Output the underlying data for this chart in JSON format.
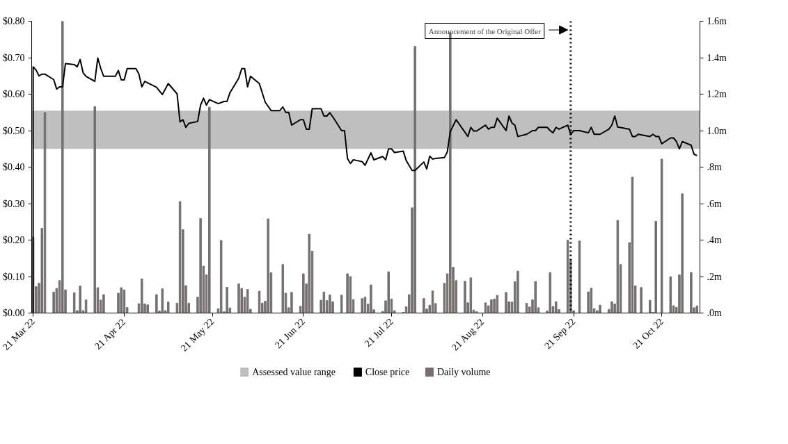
{
  "chart_data": {
    "type": "line",
    "xlim": [
      "2022-03-20T12:00",
      "2022-11-03"
    ],
    "xticks": [
      {
        "value": "2022-03-21",
        "label": "21 Mar 22"
      },
      {
        "value": "2022-04-21",
        "label": "21 Apr 22"
      },
      {
        "value": "2022-05-21",
        "label": "21 May 22"
      },
      {
        "value": "2022-06-21",
        "label": "21 Jun 22"
      },
      {
        "value": "2022-07-21",
        "label": "21 Jul 22"
      },
      {
        "value": "2022-08-21",
        "label": "21 Aug 22"
      },
      {
        "value": "2022-09-21",
        "label": "21 Sep 22"
      },
      {
        "value": "2022-10-21",
        "label": "21 Oct 22"
      }
    ],
    "ylim": [
      0,
      0.8
    ],
    "yticks": [
      {
        "value": 0,
        "label": "$0.00"
      },
      {
        "value": 0.1,
        "label": "$0.10"
      },
      {
        "value": 0.2,
        "label": "$0.20"
      },
      {
        "value": 0.3,
        "label": "$0.30"
      },
      {
        "value": 0.4,
        "label": "$0.40"
      },
      {
        "value": 0.5,
        "label": "$0.50"
      },
      {
        "value": 0.6,
        "label": "$0.60"
      },
      {
        "value": 0.7,
        "label": "$0.70"
      },
      {
        "value": 0.8,
        "label": "$0.80"
      }
    ],
    "y2lim": [
      0,
      1.6
    ],
    "y2ticks": [
      {
        "value": 0,
        "label": ".0m"
      },
      {
        "value": 0.2,
        "label": ".2m"
      },
      {
        "value": 0.4,
        "label": ".4m"
      },
      {
        "value": 0.6,
        "label": ".6m"
      },
      {
        "value": 0.8,
        "label": ".8m"
      },
      {
        "value": 1.0,
        "label": "1.0m"
      },
      {
        "value": 1.2,
        "label": "1.2m"
      },
      {
        "value": 1.4,
        "label": "1.4m"
      },
      {
        "value": 1.6,
        "label": "1.6m"
      }
    ],
    "grid": false,
    "legend": "bottom",
    "bands": [
      {
        "axis": "y",
        "from": 0.45,
        "to": 0.555,
        "label": "Assessed value range",
        "color": "#bfbfbf"
      }
    ],
    "ref_lines": [
      {
        "axis": "x",
        "value": "2022-09-20",
        "label": "Announcement of the Original Offer",
        "color": "#000000",
        "line_style": "dotted"
      }
    ],
    "series": [
      {
        "name": "Close price",
        "color": "#000000",
        "x": [
          "2022-03-21",
          "2022-03-21",
          "2022-03-22",
          "2022-03-23",
          "2022-03-24",
          "2022-03-25",
          "2022-03-28",
          "2022-03-29",
          "2022-03-30",
          "2022-03-31",
          "2022-04-01",
          "2022-04-04",
          "2022-04-05",
          "2022-04-06",
          "2022-04-07",
          "2022-04-08",
          "2022-04-11",
          "2022-04-12",
          "2022-04-13",
          "2022-04-14",
          "2022-04-18",
          "2022-04-19",
          "2022-04-20",
          "2022-04-21",
          "2022-04-22",
          "2022-04-25",
          "2022-04-26",
          "2022-04-27",
          "2022-04-28",
          "2022-05-02",
          "2022-05-04",
          "2022-05-06",
          "2022-05-09",
          "2022-05-10",
          "2022-05-11",
          "2022-05-12",
          "2022-05-13",
          "2022-05-16",
          "2022-05-17",
          "2022-05-18",
          "2022-05-19",
          "2022-05-20",
          "2022-05-23",
          "2022-05-25",
          "2022-05-26",
          "2022-05-27",
          "2022-05-30",
          "2022-05-31",
          "2022-06-01",
          "2022-06-02",
          "2022-06-03",
          "2022-06-06",
          "2022-06-08",
          "2022-06-10",
          "2022-06-13",
          "2022-06-14",
          "2022-06-15",
          "2022-06-16",
          "2022-06-17",
          "2022-06-20",
          "2022-06-21",
          "2022-06-22",
          "2022-06-23",
          "2022-06-24",
          "2022-06-27",
          "2022-06-28",
          "2022-06-29",
          "2022-06-30",
          "2022-07-01",
          "2022-07-04",
          "2022-07-05",
          "2022-07-06",
          "2022-07-07",
          "2022-07-08",
          "2022-07-11",
          "2022-07-12",
          "2022-07-14",
          "2022-07-15",
          "2022-07-18",
          "2022-07-19",
          "2022-07-20",
          "2022-07-21",
          "2022-07-22",
          "2022-07-25",
          "2022-07-26",
          "2022-07-28",
          "2022-07-29",
          "2022-08-01",
          "2022-08-02",
          "2022-08-03",
          "2022-08-04",
          "2022-08-05",
          "2022-08-08",
          "2022-08-09",
          "2022-08-10",
          "2022-08-12",
          "2022-08-16",
          "2022-08-17",
          "2022-08-18",
          "2022-08-19",
          "2022-08-22",
          "2022-08-23",
          "2022-08-24",
          "2022-08-25",
          "2022-08-26",
          "2022-08-29",
          "2022-08-30",
          "2022-08-31",
          "2022-09-01",
          "2022-09-02",
          "2022-09-05",
          "2022-09-07",
          "2022-09-08",
          "2022-09-09",
          "2022-09-12",
          "2022-09-13",
          "2022-09-14",
          "2022-09-15",
          "2022-09-16",
          "2022-09-19",
          "2022-09-20",
          "2022-09-21",
          "2022-09-23",
          "2022-09-26",
          "2022-09-27",
          "2022-09-28",
          "2022-09-30",
          "2022-10-03",
          "2022-10-04",
          "2022-10-05",
          "2022-10-06",
          "2022-10-10",
          "2022-10-11",
          "2022-10-12",
          "2022-10-13",
          "2022-10-17",
          "2022-10-18",
          "2022-10-19",
          "2022-10-20",
          "2022-10-21",
          "2022-10-24",
          "2022-10-25",
          "2022-10-26",
          "2022-10-27",
          "2022-10-28",
          "2022-10-31",
          "2022-11-01",
          "2022-11-02"
        ],
        "values": [
          0,
          0.675,
          0.666,
          0.65,
          0.655,
          0.655,
          0.64,
          0.614,
          0.62,
          0.62,
          0.684,
          0.681,
          0.675,
          0.695,
          0.659,
          0.649,
          0.635,
          0.699,
          0.671,
          0.649,
          0.649,
          0.665,
          0.639,
          0.639,
          0.67,
          0.67,
          0.655,
          0.62,
          0.635,
          0.619,
          0.599,
          0.629,
          0.601,
          0.524,
          0.53,
          0.509,
          0.52,
          0.525,
          0.57,
          0.589,
          0.57,
          0.585,
          0.574,
          0.58,
          0.58,
          0.604,
          0.644,
          0.67,
          0.67,
          0.62,
          0.649,
          0.629,
          0.578,
          0.555,
          0.555,
          0.565,
          0.55,
          0.55,
          0.515,
          0.53,
          0.53,
          0.504,
          0.504,
          0.56,
          0.56,
          0.54,
          0.54,
          0.549,
          0.538,
          0.5,
          0.5,
          0.424,
          0.41,
          0.42,
          0.415,
          0.405,
          0.439,
          0.42,
          0.429,
          0.42,
          0.45,
          0.45,
          0.44,
          0.444,
          0.418,
          0.391,
          0.391,
          0.414,
          0.395,
          0.43,
          0.422,
          0.424,
          0.426,
          0.442,
          0.497,
          0.53,
          0.484,
          0.509,
          0.499,
          0.499,
          0.515,
          0.504,
          0.509,
          0.509,
          0.534,
          0.5,
          0.54,
          0.521,
          0.515,
          0.484,
          0.49,
          0.5,
          0.5,
          0.509,
          0.509,
          0.5,
          0.494,
          0.509,
          0.504,
          0.515,
          0.49,
          0.5,
          0.5,
          0.494,
          0.509,
          0.49,
          0.49,
          0.504,
          0.515,
          0.54,
          0.51,
          0.504,
          0.484,
          0.484,
          0.49,
          0.484,
          0.49,
          0.484,
          0.484,
          0.464,
          0.48,
          0.48,
          0.47,
          0.45,
          0.47,
          0.46,
          0.435,
          0.432
        ]
      },
      {
        "name": "Daily volume",
        "type": "bar",
        "axis": "y2",
        "color": "#767171",
        "x": [
          "2022-03-21",
          "2022-03-22",
          "2022-03-23",
          "2022-03-24",
          "2022-03-25",
          "2022-03-28",
          "2022-03-29",
          "2022-03-30",
          "2022-03-31",
          "2022-04-01",
          "2022-04-04",
          "2022-04-05",
          "2022-04-06",
          "2022-04-07",
          "2022-04-08",
          "2022-04-11",
          "2022-04-12",
          "2022-04-13",
          "2022-04-14",
          "2022-04-19",
          "2022-04-20",
          "2022-04-21",
          "2022-04-22",
          "2022-04-26",
          "2022-04-27",
          "2022-04-28",
          "2022-04-29",
          "2022-05-02",
          "2022-05-03",
          "2022-05-04",
          "2022-05-05",
          "2022-05-06",
          "2022-05-09",
          "2022-05-10",
          "2022-05-11",
          "2022-05-12",
          "2022-05-13",
          "2022-05-16",
          "2022-05-17",
          "2022-05-18",
          "2022-05-19",
          "2022-05-20",
          "2022-05-23",
          "2022-05-24",
          "2022-05-25",
          "2022-05-26",
          "2022-05-27",
          "2022-05-30",
          "2022-05-31",
          "2022-06-01",
          "2022-06-02",
          "2022-06-03",
          "2022-06-06",
          "2022-06-07",
          "2022-06-08",
          "2022-06-09",
          "2022-06-10",
          "2022-06-14",
          "2022-06-15",
          "2022-06-16",
          "2022-06-17",
          "2022-06-20",
          "2022-06-21",
          "2022-06-22",
          "2022-06-23",
          "2022-06-24",
          "2022-06-27",
          "2022-06-28",
          "2022-06-29",
          "2022-06-30",
          "2022-07-01",
          "2022-07-04",
          "2022-07-06",
          "2022-07-07",
          "2022-07-08",
          "2022-07-11",
          "2022-07-12",
          "2022-07-13",
          "2022-07-14",
          "2022-07-15",
          "2022-07-18",
          "2022-07-19",
          "2022-07-20",
          "2022-07-21",
          "2022-07-22",
          "2022-07-25",
          "2022-07-26",
          "2022-07-27",
          "2022-07-28",
          "2022-07-29",
          "2022-08-01",
          "2022-08-02",
          "2022-08-03",
          "2022-08-04",
          "2022-08-05",
          "2022-08-08",
          "2022-08-09",
          "2022-08-10",
          "2022-08-11",
          "2022-08-12",
          "2022-08-15",
          "2022-08-16",
          "2022-08-17",
          "2022-08-18",
          "2022-08-19",
          "2022-08-22",
          "2022-08-23",
          "2022-08-24",
          "2022-08-25",
          "2022-08-26",
          "2022-08-29",
          "2022-08-30",
          "2022-08-31",
          "2022-09-01",
          "2022-09-02",
          "2022-09-05",
          "2022-09-06",
          "2022-09-07",
          "2022-09-08",
          "2022-09-09",
          "2022-09-12",
          "2022-09-13",
          "2022-09-14",
          "2022-09-15",
          "2022-09-16",
          "2022-09-19",
          "2022-09-20",
          "2022-09-21",
          "2022-09-23",
          "2022-09-26",
          "2022-09-27",
          "2022-09-28",
          "2022-09-29",
          "2022-09-30",
          "2022-10-03",
          "2022-10-04",
          "2022-10-05",
          "2022-10-06",
          "2022-10-07",
          "2022-10-10",
          "2022-10-11",
          "2022-10-12",
          "2022-10-14",
          "2022-10-17",
          "2022-10-18",
          "2022-10-19",
          "2022-10-21",
          "2022-10-24",
          "2022-10-25",
          "2022-10-26",
          "2022-10-27",
          "2022-10-28",
          "2022-10-31",
          "2022-11-01",
          "2022-11-02"
        ],
        "values": [
          0.416,
          0.145,
          0.163,
          0.465,
          1.099,
          0.115,
          0.135,
          0.178,
          1.6,
          0.127,
          0.111,
          0.013,
          0.148,
          0.013,
          0.072,
          1.132,
          0.139,
          0.071,
          0.101,
          0.109,
          0.139,
          0.127,
          0.03,
          0.051,
          0.187,
          0.05,
          0.045,
          0.101,
          0.011,
          0.133,
          0.013,
          0.06,
          0.054,
          0.611,
          0.457,
          0.15,
          0.054,
          0.087,
          0.518,
          0.257,
          0.209,
          1.129,
          0.024,
          0.398,
          0.007,
          0.141,
          0.028,
          0.16,
          0.135,
          0.087,
          0.129,
          0.021,
          0.12,
          0.054,
          0.065,
          0.516,
          0.221,
          0.266,
          0.109,
          0.029,
          0.113,
          0.037,
          0.215,
          0.16,
          0.432,
          0.339,
          0.07,
          0.115,
          0.068,
          0.1,
          0.062,
          0.098,
          0.215,
          0.2,
          0.074,
          0.079,
          0.087,
          0.049,
          0.154,
          0.018,
          0.009,
          0.067,
          0.226,
          0.077,
          0.013,
          0.004,
          0.034,
          0.101,
          0.577,
          1.462,
          0.08,
          0.022,
          0.043,
          0.121,
          0.052,
          0.163,
          0.215,
          1.538,
          0.251,
          0.178,
          0.174,
          0.056,
          0.193,
          0.016,
          0.007,
          0.056,
          0.04,
          0.073,
          0.077,
          0.097,
          0.113,
          0.062,
          0.06,
          0.172,
          0.23,
          0.053,
          0.033,
          0.073,
          0.173,
          0.029,
          0.011,
          0.222,
          0.036,
          0.062,
          0.019,
          0.399,
          0.29,
          0.013,
          0.395,
          0.116,
          0.136,
          0.024,
          0.013,
          0.043,
          0.02,
          0.062,
          0.049,
          0.508,
          0.266,
          0.386,
          0.745,
          0.149,
          0.14,
          0.07,
          0.004,
          0.503,
          0.844,
          0.199,
          0.04,
          0.031,
          0.209,
          0.654,
          0.222,
          0.029,
          0.039
        ]
      }
    ]
  }
}
